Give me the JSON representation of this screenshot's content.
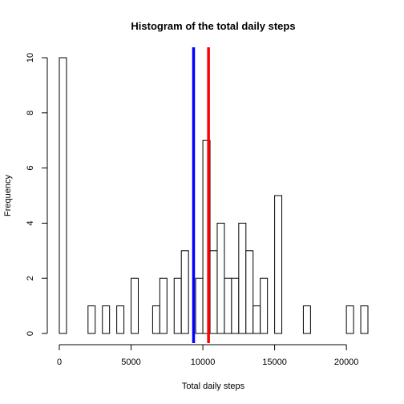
{
  "chart_data": {
    "type": "bar",
    "title": "Histogram of the total daily steps",
    "xlabel": "Total daily steps",
    "ylabel": "Frequency",
    "bin_width": 500,
    "xlim": [
      0,
      21500
    ],
    "ylim": [
      0,
      10
    ],
    "x_ticks": [
      0,
      5000,
      10000,
      15000,
      20000
    ],
    "y_ticks": [
      0,
      2,
      4,
      6,
      8,
      10
    ],
    "bins": [
      {
        "start": 0,
        "end": 500,
        "count": 10
      },
      {
        "start": 2000,
        "end": 2500,
        "count": 1
      },
      {
        "start": 3000,
        "end": 3500,
        "count": 1
      },
      {
        "start": 4000,
        "end": 4500,
        "count": 1
      },
      {
        "start": 5000,
        "end": 5500,
        "count": 2
      },
      {
        "start": 6500,
        "end": 7000,
        "count": 1
      },
      {
        "start": 7000,
        "end": 7500,
        "count": 2
      },
      {
        "start": 8000,
        "end": 8500,
        "count": 2
      },
      {
        "start": 8500,
        "end": 9000,
        "count": 3
      },
      {
        "start": 9500,
        "end": 10000,
        "count": 2
      },
      {
        "start": 10000,
        "end": 10500,
        "count": 7
      },
      {
        "start": 10500,
        "end": 11000,
        "count": 3
      },
      {
        "start": 11000,
        "end": 11500,
        "count": 4
      },
      {
        "start": 11500,
        "end": 12000,
        "count": 2
      },
      {
        "start": 12000,
        "end": 12500,
        "count": 2
      },
      {
        "start": 12500,
        "end": 13000,
        "count": 4
      },
      {
        "start": 13000,
        "end": 13500,
        "count": 3
      },
      {
        "start": 13500,
        "end": 14000,
        "count": 1
      },
      {
        "start": 14000,
        "end": 14500,
        "count": 2
      },
      {
        "start": 15000,
        "end": 15500,
        "count": 5
      },
      {
        "start": 17000,
        "end": 17500,
        "count": 1
      },
      {
        "start": 20000,
        "end": 20500,
        "count": 1
      },
      {
        "start": 21000,
        "end": 21500,
        "count": 1
      }
    ],
    "reference_lines": [
      {
        "x": 9354,
        "color": "#0000ff"
      },
      {
        "x": 10395,
        "color": "#ff0000"
      }
    ],
    "bar_fill": "#ffffff",
    "bar_stroke": "#000000",
    "grid": false,
    "legend": "none"
  }
}
